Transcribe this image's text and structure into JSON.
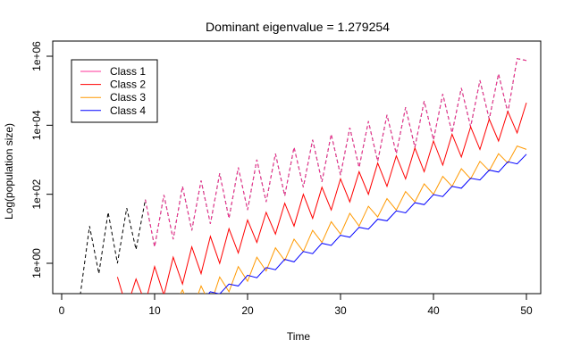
{
  "chart_data": {
    "type": "line",
    "title": "Dominant eigenvalue = 1.279254",
    "xlabel": "Time",
    "ylabel": "Log(population size)",
    "y_scale": "log10",
    "xlim": [
      0,
      50
    ],
    "ylim": [
      0.08,
      1000000
    ],
    "grid": false,
    "legend": "top-left",
    "x_ticks": [
      0,
      10,
      20,
      30,
      40,
      50
    ],
    "x_tick_labels": [
      "0",
      "10",
      "20",
      "30",
      "40",
      "50"
    ],
    "y_ticks": [
      1,
      100,
      10000,
      1000000
    ],
    "y_tick_labels": [
      "1e+00",
      "1e+02",
      "1e+04",
      "1e+06"
    ],
    "total": {
      "color": "#000000",
      "style": "dashed",
      "x": [
        2,
        3,
        4,
        5,
        6,
        7,
        8,
        9,
        10,
        11,
        12,
        13,
        14,
        15,
        16,
        17,
        18,
        19,
        20,
        21,
        22,
        23,
        24,
        25,
        26,
        27,
        28,
        29,
        30,
        31,
        32,
        33,
        34,
        35,
        36,
        37,
        38,
        39,
        40,
        41,
        42,
        43,
        44,
        45,
        46,
        47,
        48,
        49,
        50
      ],
      "values": [
        0.12,
        12,
        0.5,
        30,
        1,
        40,
        2.5,
        70,
        3,
        95,
        5,
        170,
        9,
        250,
        14,
        400,
        20,
        600,
        35,
        1000,
        60,
        1500,
        90,
        2300,
        160,
        3800,
        230,
        5500,
        360,
        8500,
        600,
        13000,
        900,
        20000,
        1500,
        33000,
        2300,
        50000,
        3800,
        80000,
        6000,
        120000,
        9000,
        200000,
        15000,
        310000,
        23000,
        850000,
        750000
      ]
    },
    "series": [
      {
        "name": "Class 1",
        "color": "#ff3399",
        "x": [
          9,
          10,
          11,
          12,
          13,
          14,
          15,
          16,
          17,
          18,
          19,
          20,
          21,
          22,
          23,
          24,
          25,
          26,
          27,
          28,
          29,
          30,
          31,
          32,
          33,
          34,
          35,
          36,
          37,
          38,
          39,
          40,
          41,
          42,
          43,
          44,
          45,
          46,
          47,
          48,
          49,
          50
        ],
        "values": [
          70,
          3,
          95,
          5,
          170,
          9,
          250,
          14,
          400,
          20,
          600,
          35,
          1000,
          60,
          1500,
          90,
          2300,
          160,
          3800,
          230,
          5500,
          360,
          8500,
          600,
          13000,
          900,
          20000,
          1500,
          33000,
          2300,
          50000,
          3800,
          80000,
          6000,
          120000,
          9000,
          200000,
          15000,
          310000,
          23000,
          850000,
          750000
        ]
      },
      {
        "name": "Class 2",
        "color": "#ff0000",
        "x": [
          6,
          7,
          8,
          9,
          10,
          11,
          12,
          13,
          14,
          15,
          16,
          17,
          18,
          19,
          20,
          21,
          22,
          23,
          24,
          25,
          26,
          27,
          28,
          29,
          30,
          31,
          32,
          33,
          34,
          35,
          36,
          37,
          38,
          39,
          40,
          41,
          42,
          43,
          44,
          45,
          46,
          47,
          48,
          49,
          50
        ],
        "values": [
          0.4,
          0.05,
          0.35,
          0.07,
          0.8,
          0.12,
          1.5,
          0.25,
          3,
          0.5,
          6,
          1,
          10,
          2,
          18,
          4,
          30,
          7,
          55,
          12,
          100,
          20,
          160,
          35,
          280,
          60,
          450,
          100,
          800,
          170,
          1300,
          280,
          2200,
          450,
          3500,
          700,
          5500,
          1200,
          9000,
          2000,
          15000,
          3500,
          25000,
          6000,
          45000
        ]
      },
      {
        "name": "Class 3",
        "color": "#ff9900",
        "x": [
          12,
          13,
          14,
          15,
          16,
          17,
          18,
          19,
          20,
          21,
          22,
          23,
          24,
          25,
          26,
          27,
          28,
          29,
          30,
          31,
          32,
          33,
          34,
          35,
          36,
          37,
          38,
          39,
          40,
          41,
          42,
          43,
          44,
          45,
          46,
          47,
          48,
          49,
          50
        ],
        "values": [
          0.05,
          0.17,
          0.04,
          0.22,
          0.06,
          0.4,
          0.15,
          0.8,
          0.3,
          1.5,
          0.6,
          2.8,
          1.2,
          5,
          2.2,
          9,
          4,
          16,
          7,
          28,
          12,
          45,
          22,
          75,
          35,
          120,
          60,
          200,
          100,
          330,
          170,
          550,
          280,
          900,
          480,
          1500,
          800,
          2500,
          2000
        ]
      },
      {
        "name": "Class 4",
        "color": "#0000ff",
        "x": [
          13,
          14,
          15,
          16,
          17,
          18,
          19,
          20,
          21,
          22,
          23,
          24,
          25,
          26,
          27,
          28,
          29,
          30,
          31,
          32,
          33,
          34,
          35,
          36,
          37,
          38,
          39,
          40,
          41,
          42,
          43,
          44,
          45,
          46,
          47,
          48,
          49,
          50
        ],
        "values": [
          0.06,
          0.1,
          0.08,
          0.15,
          0.13,
          0.25,
          0.22,
          0.45,
          0.38,
          0.75,
          0.65,
          1.3,
          1.1,
          2.2,
          1.9,
          3.8,
          3.3,
          6.5,
          5.7,
          11,
          9.8,
          19,
          17,
          33,
          29,
          57,
          50,
          98,
          86,
          170,
          150,
          290,
          260,
          500,
          440,
          870,
          760,
          1450
        ]
      }
    ]
  }
}
